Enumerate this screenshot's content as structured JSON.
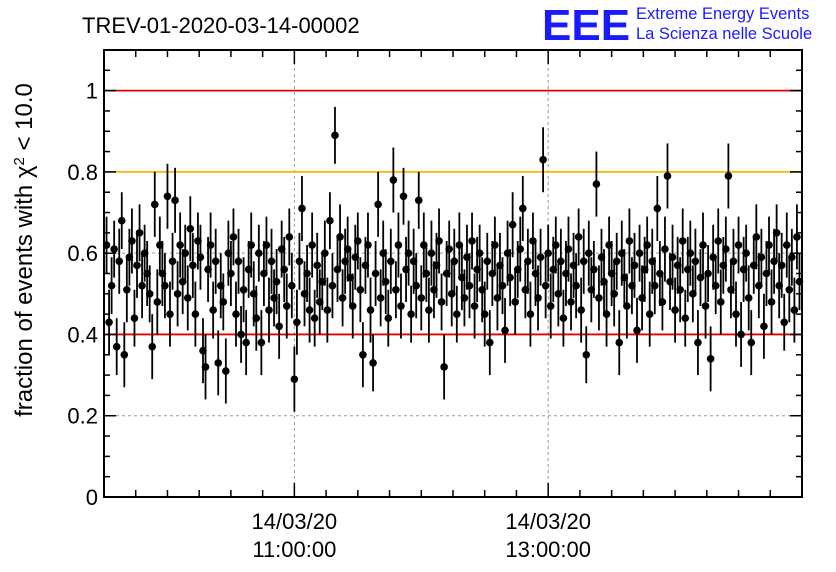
{
  "header": {
    "title": "TREV-01-2020-03-14-00002",
    "logo_letters": "EEE",
    "logo_line1": "Extreme Energy Events",
    "logo_line2": "La Scienza nelle Scuole"
  },
  "chart_data": {
    "type": "scatter",
    "title": "TREV-01-2020-03-14-00002",
    "ylabel_prefix": "fraction of events with ",
    "ylabel_symbol": "χ",
    "ylabel_power": "2",
    "ylabel_suffix": " < 10.0",
    "ylim": [
      0,
      1.1
    ],
    "xlim_hours": [
      9.5,
      15.0
    ],
    "yticks": [
      {
        "value": 0,
        "label": "0"
      },
      {
        "value": 0.2,
        "label": "0.2"
      },
      {
        "value": 0.4,
        "label": "0.4"
      },
      {
        "value": 0.6,
        "label": "0.6"
      },
      {
        "value": 0.8,
        "label": "0.8"
      },
      {
        "value": 1.0,
        "label": "1"
      }
    ],
    "xticks": [
      {
        "hour": 11.0,
        "date": "14/03/20",
        "time": "11:00:00"
      },
      {
        "hour": 13.0,
        "date": "14/03/20",
        "time": "13:00:00"
      }
    ],
    "grid": true,
    "reference_lines": [
      {
        "y": 1.0,
        "color": "#e00000"
      },
      {
        "y": 0.8,
        "color": "#ffb400"
      },
      {
        "y": 0.4,
        "color": "#e00000"
      }
    ],
    "marker_color": "#000000",
    "points": [
      [
        9.52,
        0.62,
        0.07
      ],
      [
        9.54,
        0.43,
        0.08
      ],
      [
        9.56,
        0.52,
        0.07
      ],
      [
        9.58,
        0.61,
        0.07
      ],
      [
        9.6,
        0.37,
        0.07
      ],
      [
        9.62,
        0.58,
        0.08
      ],
      [
        9.64,
        0.68,
        0.07
      ],
      [
        9.66,
        0.35,
        0.08
      ],
      [
        9.68,
        0.51,
        0.08
      ],
      [
        9.7,
        0.59,
        0.07
      ],
      [
        9.72,
        0.63,
        0.08
      ],
      [
        9.74,
        0.44,
        0.07
      ],
      [
        9.76,
        0.57,
        0.08
      ],
      [
        9.78,
        0.65,
        0.07
      ],
      [
        9.8,
        0.52,
        0.08
      ],
      [
        9.82,
        0.6,
        0.07
      ],
      [
        9.84,
        0.55,
        0.08
      ],
      [
        9.86,
        0.5,
        0.07
      ],
      [
        9.88,
        0.37,
        0.08
      ],
      [
        9.9,
        0.72,
        0.08
      ],
      [
        9.92,
        0.48,
        0.08
      ],
      [
        9.94,
        0.62,
        0.07
      ],
      [
        9.96,
        0.55,
        0.08
      ],
      [
        9.98,
        0.52,
        0.08
      ],
      [
        10.0,
        0.74,
        0.08
      ],
      [
        10.02,
        0.45,
        0.08
      ],
      [
        10.04,
        0.58,
        0.07
      ],
      [
        10.06,
        0.73,
        0.08
      ],
      [
        10.08,
        0.5,
        0.08
      ],
      [
        10.1,
        0.62,
        0.08
      ],
      [
        10.12,
        0.53,
        0.08
      ],
      [
        10.14,
        0.6,
        0.07
      ],
      [
        10.16,
        0.49,
        0.08
      ],
      [
        10.18,
        0.66,
        0.08
      ],
      [
        10.2,
        0.57,
        0.08
      ],
      [
        10.22,
        0.45,
        0.08
      ],
      [
        10.24,
        0.63,
        0.07
      ],
      [
        10.26,
        0.59,
        0.08
      ],
      [
        10.28,
        0.36,
        0.08
      ],
      [
        10.3,
        0.32,
        0.08
      ],
      [
        10.32,
        0.56,
        0.08
      ],
      [
        10.34,
        0.62,
        0.08
      ],
      [
        10.36,
        0.46,
        0.07
      ],
      [
        10.38,
        0.58,
        0.08
      ],
      [
        10.4,
        0.33,
        0.08
      ],
      [
        10.42,
        0.52,
        0.08
      ],
      [
        10.44,
        0.48,
        0.07
      ],
      [
        10.46,
        0.31,
        0.08
      ],
      [
        10.48,
        0.6,
        0.08
      ],
      [
        10.5,
        0.55,
        0.08
      ],
      [
        10.52,
        0.64,
        0.07
      ],
      [
        10.54,
        0.45,
        0.08
      ],
      [
        10.56,
        0.58,
        0.08
      ],
      [
        10.58,
        0.4,
        0.07
      ],
      [
        10.6,
        0.51,
        0.08
      ],
      [
        10.62,
        0.38,
        0.08
      ],
      [
        10.64,
        0.56,
        0.07
      ],
      [
        10.66,
        0.62,
        0.08
      ],
      [
        10.68,
        0.5,
        0.08
      ],
      [
        10.7,
        0.44,
        0.08
      ],
      [
        10.72,
        0.6,
        0.07
      ],
      [
        10.74,
        0.38,
        0.08
      ],
      [
        10.76,
        0.55,
        0.08
      ],
      [
        10.78,
        0.62,
        0.07
      ],
      [
        10.8,
        0.46,
        0.08
      ],
      [
        10.82,
        0.58,
        0.08
      ],
      [
        10.84,
        0.49,
        0.07
      ],
      [
        10.86,
        0.53,
        0.08
      ],
      [
        10.88,
        0.42,
        0.08
      ],
      [
        10.9,
        0.61,
        0.07
      ],
      [
        10.92,
        0.56,
        0.08
      ],
      [
        10.94,
        0.47,
        0.08
      ],
      [
        10.96,
        0.64,
        0.07
      ],
      [
        10.98,
        0.52,
        0.08
      ],
      [
        11.0,
        0.29,
        0.08
      ],
      [
        11.02,
        0.43,
        0.08
      ],
      [
        11.04,
        0.58,
        0.07
      ],
      [
        11.06,
        0.71,
        0.08
      ],
      [
        11.08,
        0.5,
        0.08
      ],
      [
        11.1,
        0.55,
        0.07
      ],
      [
        11.12,
        0.46,
        0.08
      ],
      [
        11.14,
        0.62,
        0.08
      ],
      [
        11.16,
        0.44,
        0.07
      ],
      [
        11.18,
        0.57,
        0.08
      ],
      [
        11.2,
        0.48,
        0.08
      ],
      [
        11.22,
        0.53,
        0.07
      ],
      [
        11.24,
        0.6,
        0.08
      ],
      [
        11.26,
        0.46,
        0.08
      ],
      [
        11.28,
        0.68,
        0.07
      ],
      [
        11.3,
        0.52,
        0.08
      ],
      [
        11.32,
        0.89,
        0.07
      ],
      [
        11.34,
        0.56,
        0.08
      ],
      [
        11.36,
        0.64,
        0.08
      ],
      [
        11.38,
        0.49,
        0.07
      ],
      [
        11.4,
        0.58,
        0.08
      ],
      [
        11.42,
        0.61,
        0.08
      ],
      [
        11.44,
        0.54,
        0.07
      ],
      [
        11.46,
        0.47,
        0.08
      ],
      [
        11.48,
        0.59,
        0.08
      ],
      [
        11.5,
        0.63,
        0.07
      ],
      [
        11.52,
        0.51,
        0.08
      ],
      [
        11.54,
        0.35,
        0.08
      ],
      [
        11.56,
        0.57,
        0.07
      ],
      [
        11.58,
        0.62,
        0.08
      ],
      [
        11.6,
        0.46,
        0.08
      ],
      [
        11.62,
        0.33,
        0.07
      ],
      [
        11.64,
        0.55,
        0.08
      ],
      [
        11.66,
        0.72,
        0.08
      ],
      [
        11.68,
        0.49,
        0.07
      ],
      [
        11.7,
        0.6,
        0.08
      ],
      [
        11.72,
        0.53,
        0.08
      ],
      [
        11.74,
        0.44,
        0.07
      ],
      [
        11.76,
        0.58,
        0.08
      ],
      [
        11.78,
        0.78,
        0.08
      ],
      [
        11.8,
        0.51,
        0.07
      ],
      [
        11.82,
        0.62,
        0.08
      ],
      [
        11.84,
        0.47,
        0.08
      ],
      [
        11.86,
        0.74,
        0.07
      ],
      [
        11.88,
        0.56,
        0.08
      ],
      [
        11.9,
        0.6,
        0.08
      ],
      [
        11.92,
        0.45,
        0.07
      ],
      [
        11.94,
        0.58,
        0.08
      ],
      [
        11.96,
        0.52,
        0.08
      ],
      [
        11.98,
        0.73,
        0.07
      ],
      [
        12.0,
        0.49,
        0.08
      ],
      [
        12.02,
        0.62,
        0.08
      ],
      [
        12.04,
        0.55,
        0.07
      ],
      [
        12.06,
        0.46,
        0.08
      ],
      [
        12.08,
        0.6,
        0.08
      ],
      [
        12.1,
        0.51,
        0.07
      ],
      [
        12.12,
        0.57,
        0.08
      ],
      [
        12.14,
        0.63,
        0.08
      ],
      [
        12.16,
        0.48,
        0.07
      ],
      [
        12.18,
        0.32,
        0.08
      ],
      [
        12.2,
        0.55,
        0.08
      ],
      [
        12.22,
        0.61,
        0.07
      ],
      [
        12.24,
        0.5,
        0.08
      ],
      [
        12.26,
        0.58,
        0.08
      ],
      [
        12.28,
        0.45,
        0.07
      ],
      [
        12.3,
        0.62,
        0.08
      ],
      [
        12.32,
        0.54,
        0.08
      ],
      [
        12.34,
        0.49,
        0.07
      ],
      [
        12.36,
        0.59,
        0.08
      ],
      [
        12.38,
        0.52,
        0.08
      ],
      [
        12.4,
        0.63,
        0.07
      ],
      [
        12.42,
        0.47,
        0.08
      ],
      [
        12.44,
        0.56,
        0.08
      ],
      [
        12.46,
        0.6,
        0.07
      ],
      [
        12.48,
        0.51,
        0.08
      ],
      [
        12.5,
        0.45,
        0.08
      ],
      [
        12.52,
        0.58,
        0.07
      ],
      [
        12.54,
        0.38,
        0.08
      ],
      [
        12.56,
        0.55,
        0.08
      ],
      [
        12.58,
        0.62,
        0.07
      ],
      [
        12.6,
        0.49,
        0.08
      ],
      [
        12.62,
        0.57,
        0.08
      ],
      [
        12.64,
        0.52,
        0.07
      ],
      [
        12.66,
        0.41,
        0.08
      ],
      [
        12.68,
        0.6,
        0.08
      ],
      [
        12.7,
        0.54,
        0.07
      ],
      [
        12.72,
        0.67,
        0.08
      ],
      [
        12.74,
        0.48,
        0.08
      ],
      [
        12.76,
        0.56,
        0.07
      ],
      [
        12.78,
        0.61,
        0.08
      ],
      [
        12.8,
        0.71,
        0.08
      ],
      [
        12.82,
        0.51,
        0.07
      ],
      [
        12.84,
        0.58,
        0.08
      ],
      [
        12.86,
        0.45,
        0.08
      ],
      [
        12.88,
        0.63,
        0.07
      ],
      [
        12.9,
        0.55,
        0.08
      ],
      [
        12.92,
        0.49,
        0.08
      ],
      [
        12.94,
        0.59,
        0.07
      ],
      [
        12.96,
        0.83,
        0.08
      ],
      [
        12.98,
        0.52,
        0.08
      ],
      [
        13.0,
        0.6,
        0.07
      ],
      [
        13.02,
        0.47,
        0.08
      ],
      [
        13.04,
        0.56,
        0.08
      ],
      [
        13.06,
        0.62,
        0.07
      ],
      [
        13.08,
        0.5,
        0.08
      ],
      [
        13.1,
        0.58,
        0.08
      ],
      [
        13.12,
        0.44,
        0.07
      ],
      [
        13.14,
        0.55,
        0.08
      ],
      [
        13.16,
        0.61,
        0.08
      ],
      [
        13.18,
        0.48,
        0.07
      ],
      [
        13.2,
        0.57,
        0.08
      ],
      [
        13.22,
        0.52,
        0.08
      ],
      [
        13.24,
        0.64,
        0.07
      ],
      [
        13.26,
        0.46,
        0.08
      ],
      [
        13.28,
        0.58,
        0.08
      ],
      [
        13.3,
        0.35,
        0.07
      ],
      [
        13.32,
        0.6,
        0.08
      ],
      [
        13.34,
        0.51,
        0.08
      ],
      [
        13.36,
        0.56,
        0.07
      ],
      [
        13.38,
        0.77,
        0.08
      ],
      [
        13.4,
        0.49,
        0.08
      ],
      [
        13.42,
        0.59,
        0.07
      ],
      [
        13.44,
        0.53,
        0.08
      ],
      [
        13.46,
        0.45,
        0.08
      ],
      [
        13.48,
        0.62,
        0.07
      ],
      [
        13.5,
        0.55,
        0.08
      ],
      [
        13.52,
        0.5,
        0.08
      ],
      [
        13.54,
        0.58,
        0.07
      ],
      [
        13.56,
        0.38,
        0.08
      ],
      [
        13.58,
        0.6,
        0.08
      ],
      [
        13.6,
        0.54,
        0.07
      ],
      [
        13.62,
        0.47,
        0.08
      ],
      [
        13.64,
        0.63,
        0.08
      ],
      [
        13.66,
        0.52,
        0.07
      ],
      [
        13.68,
        0.57,
        0.08
      ],
      [
        13.7,
        0.41,
        0.08
      ],
      [
        13.72,
        0.6,
        0.07
      ],
      [
        13.74,
        0.49,
        0.08
      ],
      [
        13.76,
        0.56,
        0.08
      ],
      [
        13.78,
        0.62,
        0.07
      ],
      [
        13.8,
        0.45,
        0.08
      ],
      [
        13.82,
        0.58,
        0.08
      ],
      [
        13.84,
        0.52,
        0.07
      ],
      [
        13.86,
        0.71,
        0.08
      ],
      [
        13.88,
        0.55,
        0.08
      ],
      [
        13.9,
        0.48,
        0.07
      ],
      [
        13.92,
        0.61,
        0.08
      ],
      [
        13.94,
        0.79,
        0.08
      ],
      [
        13.96,
        0.53,
        0.07
      ],
      [
        13.98,
        0.59,
        0.08
      ],
      [
        14.0,
        0.46,
        0.08
      ],
      [
        14.02,
        0.57,
        0.07
      ],
      [
        14.04,
        0.51,
        0.08
      ],
      [
        14.06,
        0.63,
        0.08
      ],
      [
        14.08,
        0.44,
        0.07
      ],
      [
        14.1,
        0.56,
        0.08
      ],
      [
        14.12,
        0.6,
        0.08
      ],
      [
        14.14,
        0.5,
        0.07
      ],
      [
        14.16,
        0.58,
        0.08
      ],
      [
        14.18,
        0.38,
        0.08
      ],
      [
        14.2,
        0.54,
        0.07
      ],
      [
        14.22,
        0.62,
        0.08
      ],
      [
        14.24,
        0.47,
        0.08
      ],
      [
        14.26,
        0.55,
        0.07
      ],
      [
        14.28,
        0.34,
        0.08
      ],
      [
        14.3,
        0.59,
        0.08
      ],
      [
        14.32,
        0.52,
        0.07
      ],
      [
        14.34,
        0.63,
        0.08
      ],
      [
        14.36,
        0.48,
        0.08
      ],
      [
        14.38,
        0.57,
        0.07
      ],
      [
        14.4,
        0.61,
        0.08
      ],
      [
        14.42,
        0.79,
        0.08
      ],
      [
        14.44,
        0.51,
        0.07
      ],
      [
        14.46,
        0.58,
        0.08
      ],
      [
        14.48,
        0.45,
        0.08
      ],
      [
        14.5,
        0.62,
        0.07
      ],
      [
        14.52,
        0.4,
        0.08
      ],
      [
        14.54,
        0.56,
        0.08
      ],
      [
        14.56,
        0.6,
        0.07
      ],
      [
        14.58,
        0.49,
        0.08
      ],
      [
        14.6,
        0.38,
        0.08
      ],
      [
        14.62,
        0.57,
        0.07
      ],
      [
        14.64,
        0.64,
        0.08
      ],
      [
        14.66,
        0.52,
        0.08
      ],
      [
        14.68,
        0.59,
        0.07
      ],
      [
        14.7,
        0.42,
        0.08
      ],
      [
        14.72,
        0.55,
        0.08
      ],
      [
        14.74,
        0.62,
        0.07
      ],
      [
        14.76,
        0.48,
        0.08
      ],
      [
        14.78,
        0.58,
        0.08
      ],
      [
        14.8,
        0.65,
        0.07
      ],
      [
        14.82,
        0.52,
        0.08
      ],
      [
        14.84,
        0.57,
        0.08
      ],
      [
        14.86,
        0.43,
        0.07
      ],
      [
        14.88,
        0.62,
        0.08
      ],
      [
        14.9,
        0.51,
        0.08
      ],
      [
        14.92,
        0.59,
        0.07
      ],
      [
        14.94,
        0.46,
        0.08
      ],
      [
        14.96,
        0.64,
        0.08
      ],
      [
        14.98,
        0.53,
        0.07
      ]
    ]
  }
}
